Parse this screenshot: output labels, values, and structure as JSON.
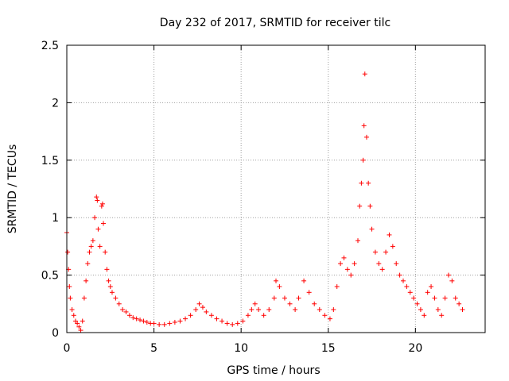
{
  "chart_data": {
    "type": "scatter",
    "title": "Day 232 of 2017, SRMTID for receiver tilc",
    "xlabel": "GPS time / hours",
    "ylabel": "SRMTID / TECUs",
    "xlim": [
      0,
      24
    ],
    "ylim": [
      0,
      2.5
    ],
    "grid": true,
    "marker": "+",
    "xticks": [
      0,
      5,
      10,
      15,
      20
    ],
    "xtick_labels": [
      "0",
      "5",
      "10",
      "15",
      "20"
    ],
    "yticks": [
      0,
      0.5,
      1,
      1.5,
      2,
      2.5
    ],
    "ytick_labels": [
      "0",
      "0.5",
      "1",
      "1.5",
      "2",
      "2.5"
    ],
    "series": [
      {
        "name": "SRMTID",
        "color": "#ff0000",
        "x": [
          0.0,
          0.05,
          0.1,
          0.15,
          0.2,
          0.3,
          0.4,
          0.5,
          0.6,
          0.7,
          0.8,
          0.9,
          1.0,
          1.1,
          1.2,
          1.3,
          1.4,
          1.5,
          1.6,
          1.7,
          1.75,
          1.8,
          1.9,
          2.0,
          2.05,
          2.1,
          2.2,
          2.3,
          2.4,
          2.5,
          2.6,
          2.8,
          3.0,
          3.2,
          3.4,
          3.6,
          3.8,
          4.0,
          4.2,
          4.4,
          4.6,
          4.8,
          5.0,
          5.3,
          5.6,
          5.9,
          6.2,
          6.5,
          6.8,
          7.1,
          7.4,
          7.6,
          7.8,
          8.0,
          8.3,
          8.6,
          8.9,
          9.2,
          9.5,
          9.8,
          10.1,
          10.4,
          10.6,
          10.8,
          11.0,
          11.3,
          11.6,
          11.9,
          12.0,
          12.2,
          12.5,
          12.8,
          13.1,
          13.3,
          13.6,
          13.9,
          14.2,
          14.5,
          14.8,
          15.1,
          15.3,
          15.5,
          15.7,
          15.9,
          16.1,
          16.3,
          16.5,
          16.7,
          16.8,
          16.9,
          17.0,
          17.05,
          17.1,
          17.2,
          17.3,
          17.4,
          17.5,
          17.7,
          17.9,
          18.1,
          18.3,
          18.5,
          18.7,
          18.9,
          19.1,
          19.3,
          19.5,
          19.7,
          19.9,
          20.1,
          20.3,
          20.5,
          20.7,
          20.9,
          21.1,
          21.3,
          21.5,
          21.7,
          21.9,
          22.1,
          22.3,
          22.5,
          22.7
        ],
        "y": [
          0.87,
          0.7,
          0.55,
          0.4,
          0.3,
          0.2,
          0.15,
          0.1,
          0.08,
          0.05,
          0.02,
          0.1,
          0.3,
          0.45,
          0.6,
          0.7,
          0.75,
          0.8,
          1.0,
          1.18,
          1.15,
          0.9,
          0.75,
          1.1,
          1.12,
          0.95,
          0.7,
          0.55,
          0.45,
          0.4,
          0.35,
          0.3,
          0.25,
          0.2,
          0.18,
          0.15,
          0.13,
          0.12,
          0.11,
          0.1,
          0.09,
          0.08,
          0.08,
          0.07,
          0.07,
          0.08,
          0.09,
          0.1,
          0.12,
          0.15,
          0.2,
          0.25,
          0.22,
          0.18,
          0.15,
          0.12,
          0.1,
          0.08,
          0.07,
          0.08,
          0.1,
          0.15,
          0.2,
          0.25,
          0.2,
          0.15,
          0.2,
          0.3,
          0.45,
          0.4,
          0.3,
          0.25,
          0.2,
          0.3,
          0.45,
          0.35,
          0.25,
          0.2,
          0.15,
          0.12,
          0.2,
          0.4,
          0.6,
          0.65,
          0.55,
          0.5,
          0.6,
          0.8,
          1.1,
          1.3,
          1.5,
          1.8,
          2.25,
          1.7,
          1.3,
          1.1,
          0.9,
          0.7,
          0.6,
          0.55,
          0.7,
          0.85,
          0.75,
          0.6,
          0.5,
          0.45,
          0.4,
          0.35,
          0.3,
          0.25,
          0.2,
          0.15,
          0.35,
          0.4,
          0.3,
          0.2,
          0.15,
          0.3,
          0.5,
          0.45,
          0.3,
          0.25,
          0.2
        ]
      }
    ]
  }
}
